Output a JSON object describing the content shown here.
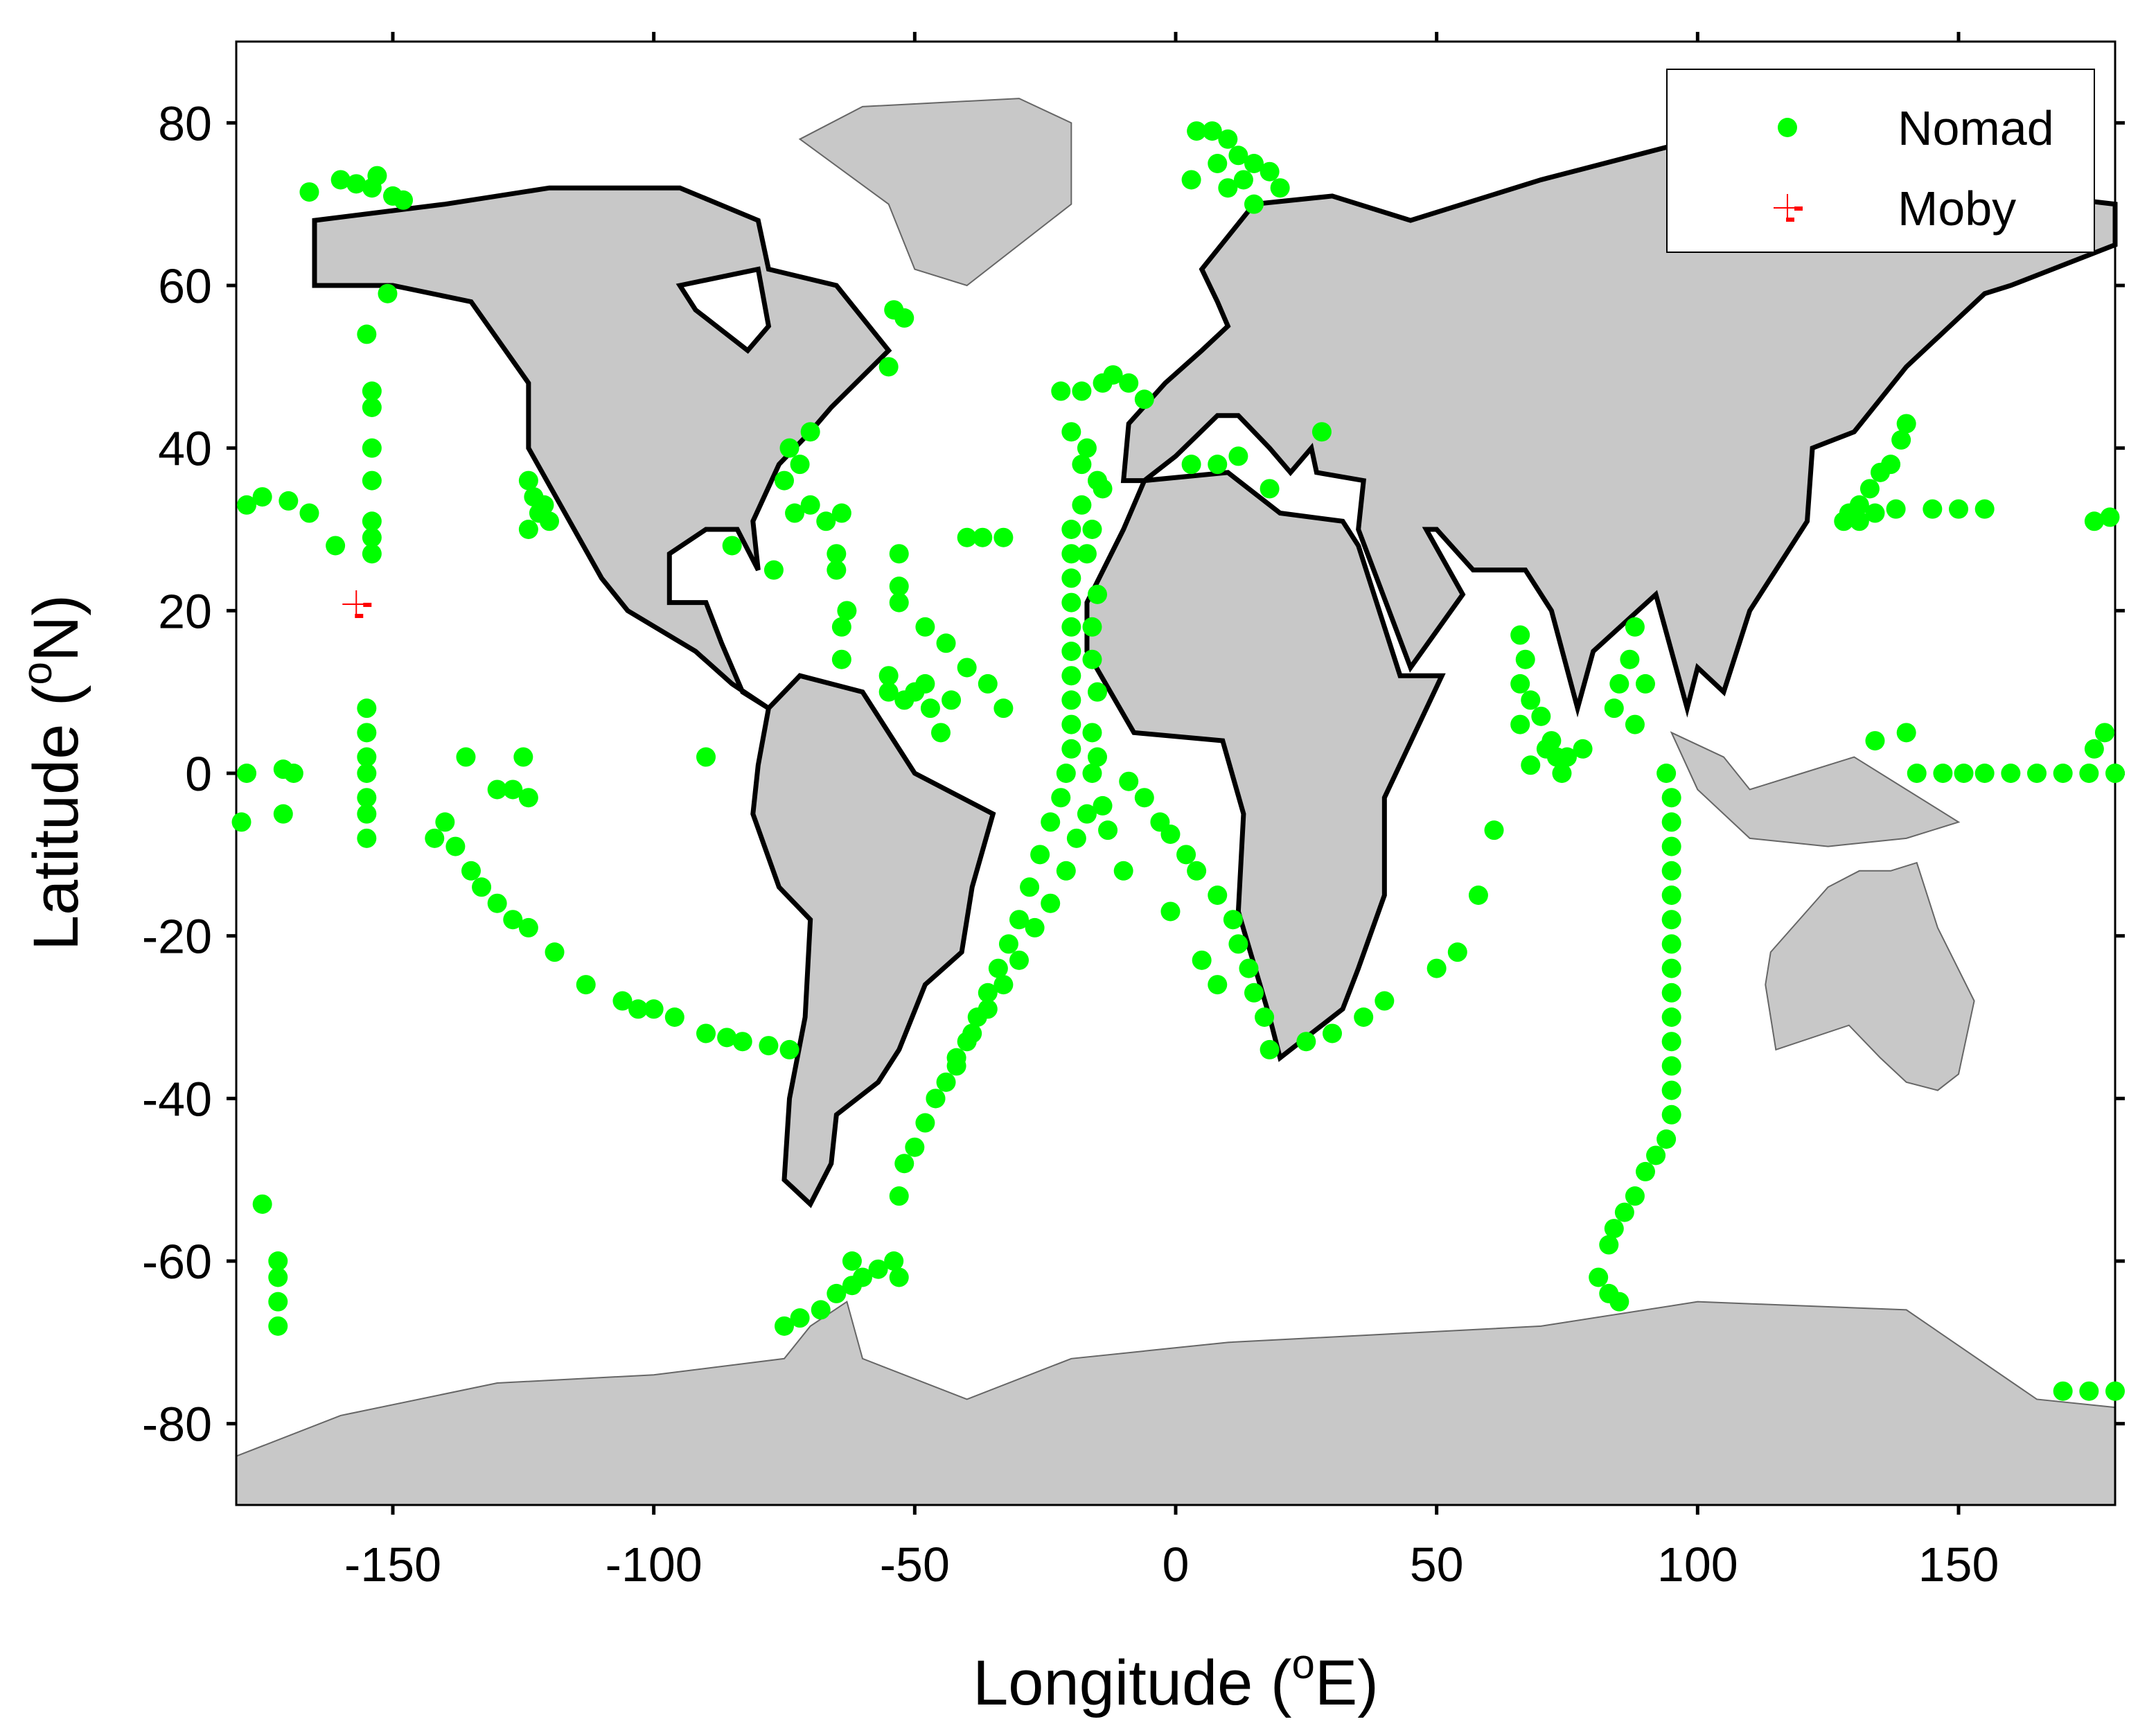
{
  "chart_data": {
    "type": "scatter",
    "xlabel": [
      "Longitude (",
      "o",
      "E)"
    ],
    "ylabel": [
      "Latitude (",
      "o",
      "N)"
    ],
    "xlim": [
      -180,
      180
    ],
    "ylim": [
      -90,
      90
    ],
    "xticks": [
      -150,
      -100,
      -50,
      0,
      50,
      100,
      150
    ],
    "yticks": [
      -80,
      -60,
      -40,
      -20,
      0,
      20,
      40,
      60,
      80
    ],
    "legend": "upper right",
    "series": [
      {
        "name": "Nomad",
        "color": "#00ff00",
        "marker": "circle",
        "x": [
          -166,
          -160,
          -157,
          -154,
          -150,
          -148,
          -153,
          -151,
          -155,
          -154,
          -154,
          -154,
          -154,
          -154,
          -154,
          -154,
          -178,
          -175,
          -170,
          -166,
          -161,
          -178,
          -171,
          -169,
          -171,
          -179,
          -155,
          -155,
          -155,
          -155,
          -155,
          -155,
          -155,
          -136,
          -130,
          -127,
          -125,
          -124,
          -142,
          -140,
          -138,
          -135,
          -133,
          -130,
          -127,
          -124,
          -119,
          -113,
          -106,
          -103,
          -100,
          -96,
          -90,
          -86,
          -83,
          -78,
          -74,
          -90,
          -175,
          -172,
          -172,
          -172,
          -172,
          -124,
          -123,
          -122,
          -120,
          -124,
          -121,
          -74,
          -70,
          -72,
          -75,
          -70,
          -67,
          -73,
          -54,
          -52,
          -55,
          -64,
          -65,
          -65,
          -64,
          -63,
          -64,
          -77,
          -85,
          -53,
          -53,
          -53,
          -48,
          -44,
          -40,
          -36,
          -33,
          -55,
          -55,
          -52,
          -50,
          -47,
          -45,
          -43,
          -48,
          -40,
          -37,
          -33,
          -22,
          -18,
          -14,
          -12,
          -9,
          -6,
          -20,
          -18,
          -15,
          -18,
          -20,
          -20,
          -20,
          -20,
          -20,
          -20,
          -20,
          -20,
          -20,
          -20,
          -21,
          -22,
          -24,
          -26,
          -28,
          -30,
          -32,
          -34,
          -36,
          -38,
          -40,
          -42,
          -44,
          -46,
          -48,
          -50,
          -52,
          -53,
          -17,
          -14,
          -16,
          -17,
          -15,
          -16,
          -16,
          -15,
          -16,
          -16,
          -17,
          -19,
          -21,
          -24,
          -27,
          -30,
          -33,
          -36,
          -39,
          -42,
          -46,
          -15,
          -14,
          -13,
          -10,
          -9,
          -6,
          -3,
          -1,
          2,
          4,
          8,
          11,
          12,
          14,
          15,
          17,
          18,
          -1,
          5,
          8,
          4,
          7,
          10,
          12,
          15,
          18,
          20,
          15,
          10,
          3,
          8,
          13,
          25,
          30,
          36,
          40,
          50,
          54,
          58,
          61,
          66,
          67,
          66,
          68,
          66,
          70,
          72,
          73,
          71,
          75,
          74,
          78,
          68,
          88,
          87,
          85,
          84,
          88,
          90,
          94,
          95,
          95,
          95,
          95,
          95,
          95,
          95,
          95,
          95,
          95,
          95,
          95,
          95,
          95,
          94,
          92,
          90,
          88,
          86,
          84,
          83,
          81,
          83,
          85,
          129,
          131,
          133,
          135,
          137,
          139,
          140,
          134,
          138,
          145,
          150,
          155,
          128,
          131,
          176,
          179,
          134,
          140,
          142,
          147,
          151,
          155,
          160,
          165,
          170,
          175,
          180,
          176,
          178,
          170,
          175,
          180,
          -75,
          -72,
          -68,
          -65,
          -62,
          -60,
          -57,
          -54,
          -62,
          -53,
          3,
          8,
          12,
          18,
          28
        ],
        "values": [
          71.5,
          73,
          72.5,
          72,
          71,
          70.5,
          73.5,
          59,
          54,
          47,
          45,
          40,
          36,
          31,
          29,
          27,
          33,
          34,
          33.5,
          32,
          28,
          0,
          0.5,
          0,
          -5,
          -6,
          8,
          5,
          2,
          0,
          -3,
          -5,
          -8,
          2,
          -2,
          -2,
          2,
          -3,
          -8,
          -6,
          -9,
          -12,
          -14,
          -16,
          -18,
          -19,
          -22,
          -26,
          -28,
          -29,
          -29,
          -30,
          -32,
          -32.5,
          -33,
          -33.5,
          -34,
          2,
          -53,
          -60,
          -62,
          -65,
          -68,
          36,
          34,
          32,
          31,
          30,
          33,
          40,
          42,
          38,
          36,
          33,
          31,
          32,
          57,
          56,
          50,
          32,
          27,
          25,
          18,
          20,
          14,
          25,
          28,
          27,
          23,
          21,
          18,
          16,
          13,
          11,
          8,
          12,
          10,
          9,
          10,
          8,
          5,
          9,
          11,
          29,
          29,
          29,
          47,
          47,
          48,
          49,
          48,
          46,
          42,
          38,
          36,
          33,
          30,
          27,
          24,
          21,
          18,
          15,
          12,
          9,
          6,
          3,
          0,
          -3,
          -6,
          -10,
          -14,
          -18,
          -21,
          -24,
          -27,
          -30,
          -33,
          -36,
          -38,
          -40,
          -43,
          -46,
          -48,
          -52,
          40,
          35,
          30,
          27,
          22,
          18,
          14,
          10,
          5,
          0,
          -5,
          -8,
          -12,
          -16,
          -19,
          -23,
          -26,
          -29,
          -32,
          -35,
          -40,
          2,
          -4,
          -7,
          -12,
          -1,
          -3,
          -6,
          -7.5,
          -10,
          -12,
          -15,
          -18,
          -21,
          -24,
          -27,
          -30,
          -34,
          -17,
          -23,
          -26,
          79,
          79,
          78,
          76,
          75,
          74,
          72,
          70,
          72,
          73,
          75,
          73,
          -33,
          -32,
          -30,
          -28,
          -24,
          -22,
          -15,
          -7,
          17,
          14,
          11,
          9,
          6,
          7,
          4,
          2,
          3,
          2,
          0,
          3,
          1,
          18,
          14,
          11,
          8,
          6,
          11,
          0,
          -3,
          -6,
          -9,
          -12,
          -15,
          -18,
          -21,
          -24,
          -27,
          -30,
          -33,
          -36,
          -39,
          -42,
          -45,
          -47,
          -49,
          -52,
          -54,
          -56,
          -58,
          -62,
          -64,
          -65,
          32,
          33,
          35,
          37,
          38,
          41,
          43,
          32,
          32.5,
          32.5,
          32.5,
          32.5,
          31,
          31,
          31,
          31.5,
          4,
          5,
          0,
          0,
          0,
          0,
          0,
          0,
          0,
          0,
          0,
          3,
          5,
          -76,
          -76,
          -76,
          -68,
          -67,
          -66,
          -64,
          -63,
          -62,
          -61,
          -60,
          -60,
          -62,
          38,
          38,
          39,
          35,
          42
        ]
      },
      {
        "name": "Moby",
        "color": "#ff0000",
        "marker": "plus",
        "x": [
          -157
        ],
        "values": [
          20.8
        ]
      }
    ]
  }
}
